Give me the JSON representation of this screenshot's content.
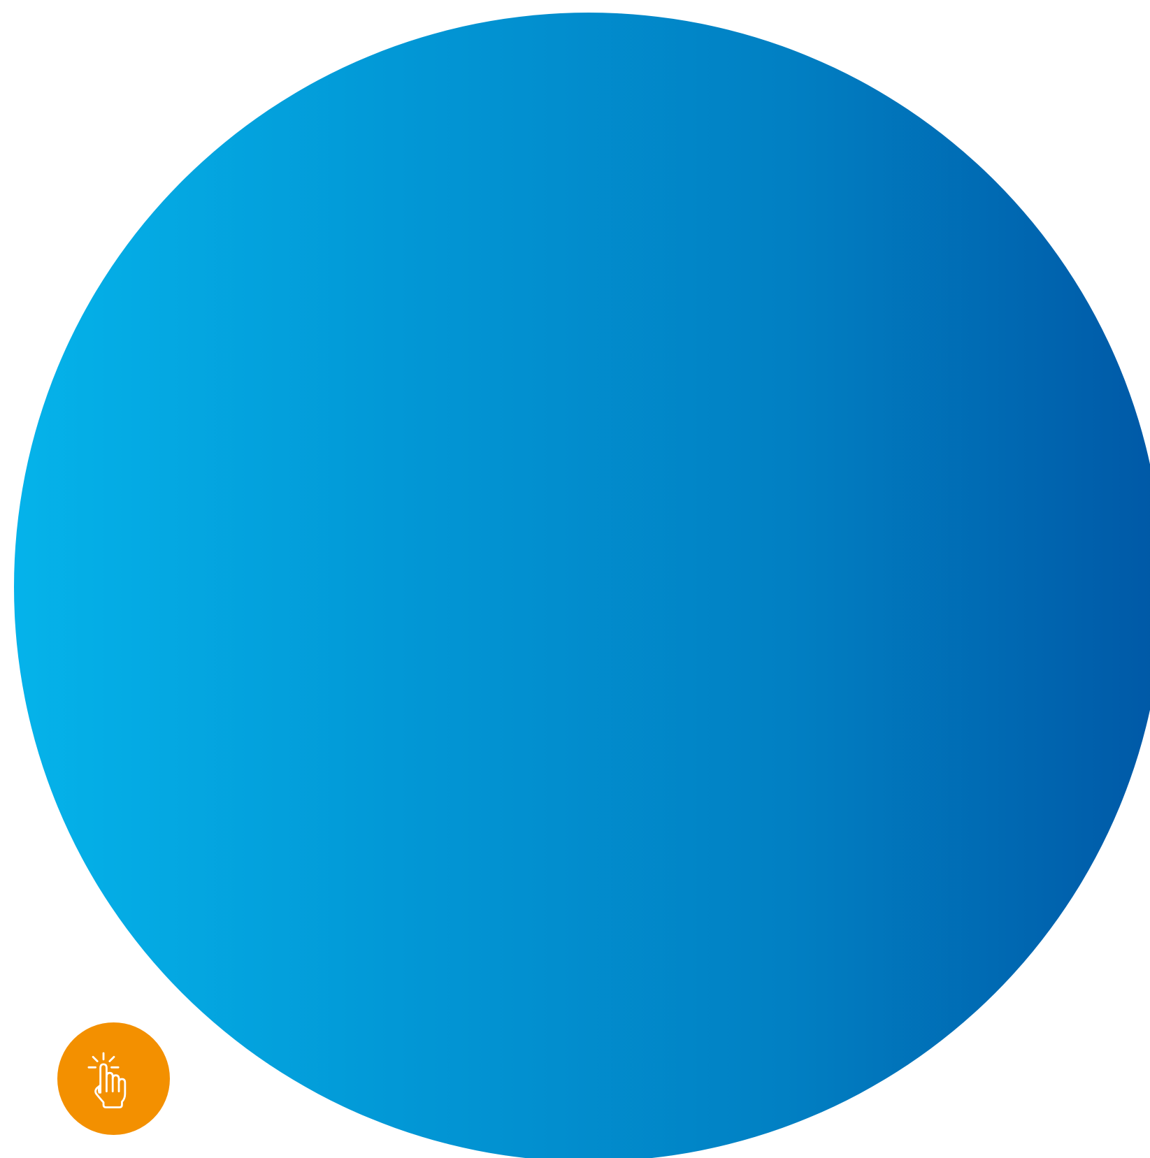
{
  "background": {
    "page_color": "#ffffff",
    "circle_gradient": [
      "#05b3ea",
      "#0298d6",
      "#0180c3",
      "#0058a6"
    ]
  },
  "tap_button": {
    "icon": "hand-tap-icon",
    "color": "#f39000",
    "icon_color": "#ffffff"
  }
}
